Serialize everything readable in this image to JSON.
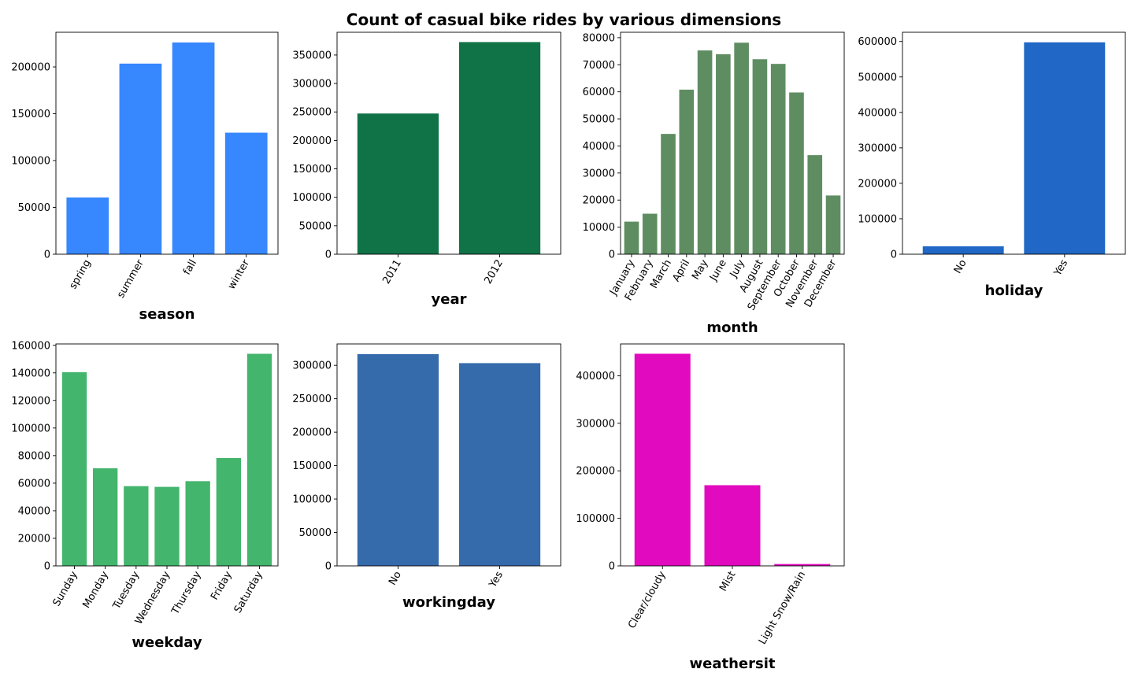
{
  "title": "Count of casual bike rides by various dimensions",
  "chart_data": [
    {
      "type": "bar",
      "xlabel": "season",
      "categories": [
        "spring",
        "summer",
        "fall",
        "winter"
      ],
      "values": [
        60622,
        203522,
        226091,
        129782
      ],
      "ylim": [
        0,
        237000
      ],
      "yticks": [
        0,
        50000,
        100000,
        150000,
        200000
      ],
      "color": "#3787FF"
    },
    {
      "type": "bar",
      "xlabel": "year",
      "categories": [
        "2011",
        "2012"
      ],
      "values": [
        247252,
        372765
      ],
      "ylim": [
        0,
        390000
      ],
      "yticks": [
        0,
        50000,
        100000,
        150000,
        200000,
        250000,
        300000,
        350000
      ],
      "color": "#107347"
    },
    {
      "type": "bar",
      "xlabel": "month",
      "categories": [
        "January",
        "February",
        "March",
        "April",
        "May",
        "June",
        "July",
        "August",
        "September",
        "October",
        "November",
        "December"
      ],
      "values": [
        12042,
        14963,
        44444,
        60802,
        75285,
        73906,
        78157,
        72039,
        70323,
        59760,
        36603,
        21693
      ],
      "ylim": [
        0,
        82000
      ],
      "yticks": [
        0,
        10000,
        20000,
        30000,
        40000,
        50000,
        60000,
        70000,
        80000
      ],
      "color": "#5F8D62"
    },
    {
      "type": "bar",
      "xlabel": "holiday",
      "categories": [
        "No",
        "Yes"
      ],
      "values": [
        22359,
        597658
      ],
      "ylim": [
        0,
        626000
      ],
      "yticks": [
        0,
        100000,
        200000,
        300000,
        400000,
        500000,
        600000
      ],
      "color": "#2067C6"
    },
    {
      "type": "bar",
      "xlabel": "weekday",
      "categories": [
        "Sunday",
        "Monday",
        "Tuesday",
        "Wednesday",
        "Thursday",
        "Friday",
        "Saturday"
      ],
      "values": [
        140521,
        70784,
        57843,
        57319,
        61460,
        78238,
        153852
      ],
      "ylim": [
        0,
        161000
      ],
      "yticks": [
        0,
        20000,
        40000,
        60000,
        80000,
        100000,
        120000,
        140000,
        160000
      ],
      "color": "#43B56C"
    },
    {
      "type": "bar",
      "xlabel": "workingday",
      "categories": [
        "No",
        "Yes"
      ],
      "values": [
        316732,
        303285
      ],
      "ylim": [
        0,
        332000
      ],
      "yticks": [
        0,
        50000,
        100000,
        150000,
        200000,
        250000,
        300000
      ],
      "color": "#366BAB"
    },
    {
      "type": "bar",
      "xlabel": "weathersit",
      "categories": [
        "Clear/cloudy",
        "Mist",
        "Light Snow/Rain"
      ],
      "values": [
        446346,
        169776,
        3895
      ],
      "ylim": [
        0,
        467000
      ],
      "yticks": [
        0,
        100000,
        200000,
        300000,
        400000
      ],
      "color": "#E20ABE"
    }
  ]
}
